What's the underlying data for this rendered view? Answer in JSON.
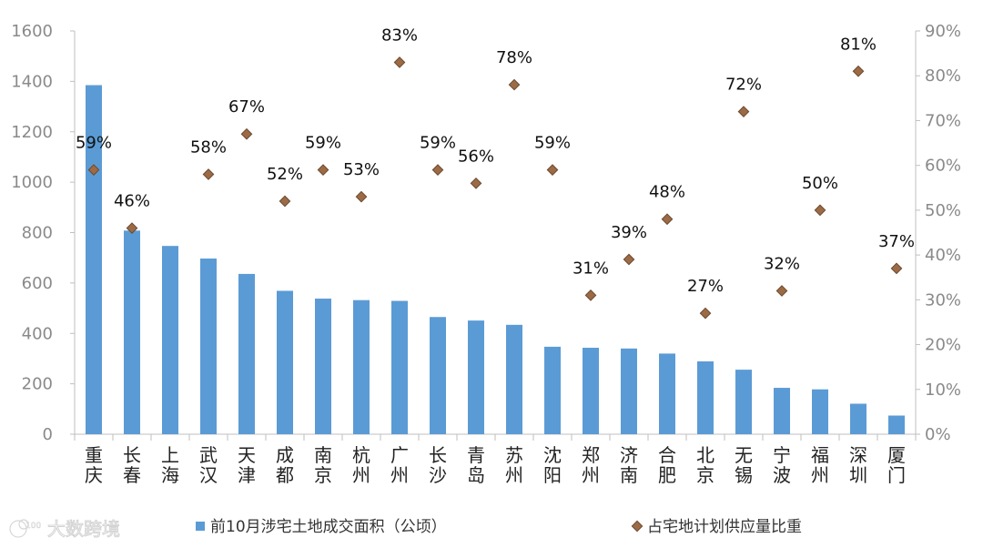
{
  "chart_data": {
    "type": "bar",
    "categories": [
      "重庆",
      "长春",
      "上海",
      "武汉",
      "天津",
      "成都",
      "南京",
      "杭州",
      "广州",
      "长沙",
      "青岛",
      "苏州",
      "沈阳",
      "郑州",
      "济南",
      "合肥",
      "北京",
      "无锡",
      "宁波",
      "福州",
      "深圳",
      "厦门"
    ],
    "category_lines": [
      [
        "重",
        "庆"
      ],
      [
        "长",
        "春"
      ],
      [
        "上",
        "海"
      ],
      [
        "武",
        "汉"
      ],
      [
        "天",
        "津"
      ],
      [
        "成",
        "都"
      ],
      [
        "南",
        "京"
      ],
      [
        "杭",
        "州"
      ],
      [
        "广",
        "州"
      ],
      [
        "长",
        "沙"
      ],
      [
        "青",
        "岛"
      ],
      [
        "苏",
        "州"
      ],
      [
        "沈",
        "阳"
      ],
      [
        "郑",
        "州"
      ],
      [
        "济",
        "南"
      ],
      [
        "合",
        "肥"
      ],
      [
        "北",
        "京"
      ],
      [
        "无",
        "锡"
      ],
      [
        "宁",
        "波"
      ],
      [
        "福",
        "州"
      ],
      [
        "深",
        "圳"
      ],
      [
        "厦",
        "门"
      ]
    ],
    "series": [
      {
        "name": "前10月涉宅土地成交面积（公顷）",
        "type": "bar",
        "axis": "left",
        "color": "#5b9bd5",
        "values": [
          1385,
          808,
          747,
          697,
          636,
          569,
          538,
          532,
          529,
          465,
          451,
          434,
          347,
          343,
          340,
          320,
          289,
          256,
          184,
          178,
          121,
          74
        ]
      },
      {
        "name": "占宅地计划供应量比重",
        "type": "scatter",
        "axis": "right",
        "color": "#9c6b46",
        "values": [
          59,
          46,
          58,
          67,
          52,
          59,
          53,
          83,
          59,
          56,
          78,
          59,
          31,
          39,
          48,
          27,
          72,
          32,
          50,
          81,
          37
        ],
        "labels": [
          "59%",
          "46%",
          "58%",
          "67%",
          "52%",
          "59%",
          "53%",
          "83%",
          "59%",
          "56%",
          "78%",
          "59%",
          "31%",
          "39%",
          "48%",
          "27%",
          "72%",
          "32%",
          "50%",
          "81%",
          "37%"
        ],
        "category_index": [
          0,
          1,
          3,
          4,
          5,
          6,
          7,
          8,
          9,
          10,
          11,
          12,
          13,
          14,
          15,
          16,
          17,
          18,
          19,
          20,
          21
        ]
      }
    ],
    "y_left": {
      "ylim": [
        0,
        1600
      ],
      "ticks": [
        "0",
        "200",
        "400",
        "600",
        "800",
        "1000",
        "1200",
        "1400",
        "1600"
      ],
      "tick_values": [
        0,
        200,
        400,
        600,
        800,
        1000,
        1200,
        1400,
        1600
      ]
    },
    "y_right": {
      "ylim": [
        0,
        90
      ],
      "ticks": [
        "0%",
        "10%",
        "20%",
        "30%",
        "40%",
        "50%",
        "60%",
        "70%",
        "80%",
        "90%"
      ],
      "tick_values": [
        0,
        10,
        20,
        30,
        40,
        50,
        60,
        70,
        80,
        90
      ]
    },
    "legend": [
      "前10月涉宅土地成交面积（公顷）",
      "占宅地计划供应量比重"
    ],
    "grid": false,
    "title": "",
    "xlabel": "",
    "ylabel": ""
  },
  "watermark": {
    "text": "大数跨境",
    "mark": "100"
  }
}
